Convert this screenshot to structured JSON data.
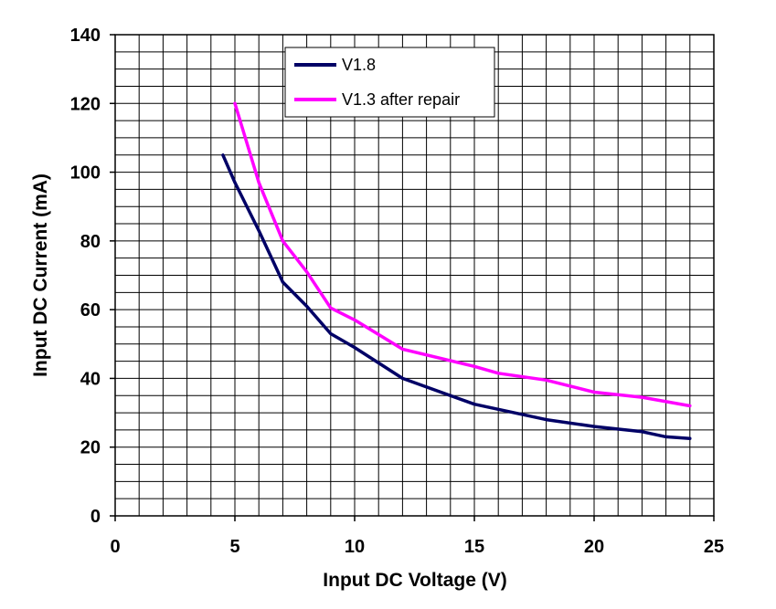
{
  "chart_data": {
    "type": "line",
    "xlabel": "Input DC Voltage (V)",
    "ylabel": "Input DC Current (mA)",
    "xlim": [
      0,
      25
    ],
    "ylim": [
      0,
      140
    ],
    "x_ticks": [
      0,
      5,
      10,
      15,
      20,
      25
    ],
    "y_ticks": [
      0,
      20,
      40,
      60,
      80,
      100,
      120,
      140
    ],
    "x_minor_step": 1,
    "y_minor_step": 5,
    "grid": true,
    "legend_position": "top-center",
    "series": [
      {
        "name": "V1.8",
        "color": "#000066",
        "points": [
          [
            4.5,
            105
          ],
          [
            5,
            97
          ],
          [
            6,
            83
          ],
          [
            7,
            68
          ],
          [
            8,
            61
          ],
          [
            9,
            53
          ],
          [
            10,
            49
          ],
          [
            12,
            40
          ],
          [
            15,
            32.5
          ],
          [
            18,
            28
          ],
          [
            20,
            26
          ],
          [
            22,
            24.5
          ],
          [
            23,
            23
          ],
          [
            24,
            22.5
          ]
        ]
      },
      {
        "name": "V1.3 after repair",
        "color": "#ff00ff",
        "points": [
          [
            5,
            120
          ],
          [
            6,
            97
          ],
          [
            7,
            80
          ],
          [
            8,
            71
          ],
          [
            9,
            60.5
          ],
          [
            10,
            57
          ],
          [
            12,
            48.5
          ],
          [
            15,
            43.5
          ],
          [
            16,
            41.5
          ],
          [
            18,
            39.5
          ],
          [
            20,
            36
          ],
          [
            22,
            34.5
          ],
          [
            24,
            32
          ]
        ]
      }
    ]
  }
}
